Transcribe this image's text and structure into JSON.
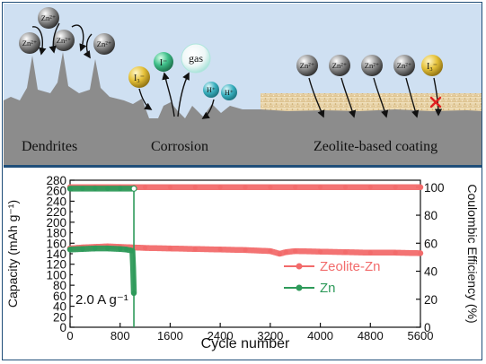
{
  "schematic": {
    "labels": {
      "dendrites": "Dendrites",
      "corrosion": "Corrosion",
      "coating": "Zeolite-based coating"
    },
    "ions": {
      "zinc": "Zn²⁺",
      "triiodide": "I₃⁻",
      "iodide": "I⁻",
      "proton": "H⁺",
      "gas": "gas"
    },
    "colors": {
      "sky": "#cfe0f2",
      "substrate": "#8c8c8c",
      "coating": "#e8d3a8",
      "zinc_ion": "#9a9a9a",
      "triiodide_ion": "#e6c23a",
      "iodide_ion": "#3fbf8a",
      "proton_ion": "#37aebd",
      "blocked_mark": "#e02020"
    },
    "icons": [
      "blocked-cross-icon"
    ]
  },
  "chart_data": {
    "type": "scatter",
    "xlabel": "Cycle number",
    "ylabel_left": "Capacity (mAh g⁻¹)",
    "ylabel_right": "Coulombic Efficiency (%)",
    "xlim": [
      0,
      5600
    ],
    "xticks": [
      0,
      800,
      1600,
      2400,
      3200,
      4000,
      4800,
      5600
    ],
    "ylim_left": [
      0,
      280
    ],
    "yticks_left": [
      0,
      20,
      40,
      60,
      80,
      100,
      120,
      140,
      160,
      180,
      200,
      220,
      240,
      260,
      280
    ],
    "ylim_right": [
      0,
      105
    ],
    "yticks_right": [
      0,
      20,
      40,
      60,
      80,
      100
    ],
    "annotation": "2.0 A g⁻¹",
    "legend_position": "bottom-right",
    "grid": false,
    "series": [
      {
        "name": "Zeolite-Zn",
        "color": "#f26b6b",
        "axis": "left",
        "quantity": "capacity",
        "x": [
          0,
          200,
          400,
          600,
          800,
          1000,
          1200,
          1600,
          2000,
          2400,
          2800,
          3200,
          3350,
          3450,
          3600,
          4000,
          4400,
          4800,
          5200,
          5600
        ],
        "y": [
          150,
          152,
          153,
          154,
          153,
          152,
          151,
          150,
          149,
          148,
          147,
          145,
          140,
          143,
          145,
          144,
          143,
          142,
          142,
          141
        ]
      },
      {
        "name": "Zeolite-Zn",
        "color": "#f26b6b",
        "axis": "right",
        "quantity": "coulombic_efficiency",
        "x": [
          0,
          400,
          800,
          1200,
          1600,
          2000,
          2400,
          2800,
          3200,
          3600,
          4000,
          4400,
          4800,
          5200,
          5600
        ],
        "y": [
          100,
          100,
          100,
          100,
          100,
          100,
          100,
          100,
          100,
          100,
          100,
          100,
          100,
          100,
          100
        ]
      },
      {
        "name": "Zn",
        "color": "#2e9a5a",
        "axis": "left",
        "quantity": "capacity",
        "x": [
          0,
          200,
          400,
          600,
          800,
          900,
          980,
          1000,
          1020
        ],
        "y": [
          148,
          149,
          150,
          150,
          149,
          148,
          146,
          145,
          65
        ]
      },
      {
        "name": "Zn",
        "color": "#2e9a5a",
        "axis": "right",
        "quantity": "coulombic_efficiency",
        "x": [
          0,
          200,
          400,
          600,
          800,
          1000
        ],
        "y": [
          99,
          99,
          99,
          99,
          99,
          99
        ]
      }
    ]
  }
}
